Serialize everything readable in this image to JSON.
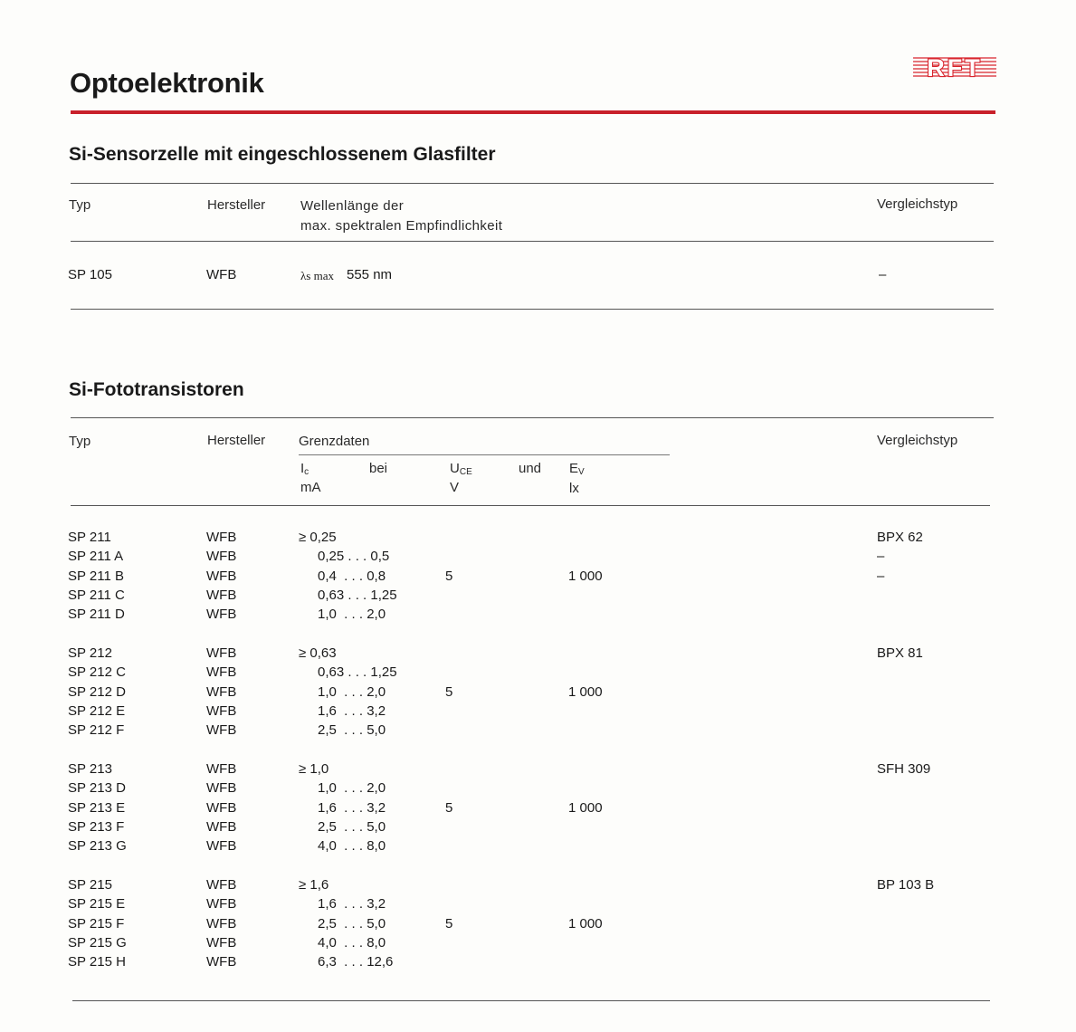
{
  "page_title": "Optoelektronik",
  "logo_text": "RFT",
  "colors": {
    "accent_red": "#c8202a"
  },
  "section1": {
    "title": "Si-Sensorzelle mit eingeschlossenem Glasfilter",
    "headers": {
      "typ": "Typ",
      "hersteller": "Hersteller",
      "wellen_1": "Wellenlänge der",
      "wellen_2": "max. spektralen Empfindlichkeit",
      "vergleich": "Vergleichstyp"
    },
    "row": {
      "typ": "SP 105",
      "hersteller": "WFB",
      "lambda_symbol": "λs max",
      "wellenlaenge": "555 nm",
      "vergleich": "–"
    }
  },
  "section2": {
    "title": "Si-Fototransistoren",
    "headers": {
      "typ": "Typ",
      "hersteller": "Hersteller",
      "grenzdaten": "Grenzdaten",
      "ic": "I",
      "ic_sub": "c",
      "ic_unit": "mA",
      "bei": "bei",
      "uce": "U",
      "uce_sub": "CE",
      "uce_unit": "V",
      "und": "und",
      "ev": "E",
      "ev_sub": "V",
      "ev_unit": "lx",
      "vergleich": "Vergleichstyp"
    },
    "groups": [
      {
        "uce": "5",
        "ev": "1 000",
        "rows": [
          {
            "typ": "SP 211",
            "hersteller": "WFB",
            "ic": "≥ 0,25",
            "vergleich": "BPX 62"
          },
          {
            "typ": "SP 211 A",
            "hersteller": "WFB",
            "ic": "0,25 . . . 0,5",
            "vergleich": "–"
          },
          {
            "typ": "SP 211 B",
            "hersteller": "WFB",
            "ic": "0,4  . . . 0,8",
            "vergleich": "–"
          },
          {
            "typ": "SP 211 C",
            "hersteller": "WFB",
            "ic": "0,63 . . . 1,25"
          },
          {
            "typ": "SP 211 D",
            "hersteller": "WFB",
            "ic": "1,0  . . . 2,0"
          }
        ]
      },
      {
        "uce": "5",
        "ev": "1 000",
        "rows": [
          {
            "typ": "SP 212",
            "hersteller": "WFB",
            "ic": "≥ 0,63",
            "vergleich": "BPX 81"
          },
          {
            "typ": "SP 212 C",
            "hersteller": "WFB",
            "ic": "0,63 . . . 1,25"
          },
          {
            "typ": "SP 212 D",
            "hersteller": "WFB",
            "ic": "1,0  . . . 2,0"
          },
          {
            "typ": "SP 212 E",
            "hersteller": "WFB",
            "ic": "1,6  . . . 3,2"
          },
          {
            "typ": "SP 212 F",
            "hersteller": "WFB",
            "ic": "2,5  . . . 5,0"
          }
        ]
      },
      {
        "uce": "5",
        "ev": "1 000",
        "rows": [
          {
            "typ": "SP 213",
            "hersteller": "WFB",
            "ic": "≥ 1,0",
            "vergleich": "SFH 309"
          },
          {
            "typ": "SP 213 D",
            "hersteller": "WFB",
            "ic": "1,0  . . . 2,0"
          },
          {
            "typ": "SP 213 E",
            "hersteller": "WFB",
            "ic": "1,6  . . . 3,2"
          },
          {
            "typ": "SP 213 F",
            "hersteller": "WFB",
            "ic": "2,5  . . . 5,0"
          },
          {
            "typ": "SP 213 G",
            "hersteller": "WFB",
            "ic": "4,0  . . . 8,0"
          }
        ]
      },
      {
        "uce": "5",
        "ev": "1 000",
        "rows": [
          {
            "typ": "SP 215",
            "hersteller": "WFB",
            "ic": "≥ 1,6",
            "vergleich": "BP 103 B"
          },
          {
            "typ": "SP 215 E",
            "hersteller": "WFB",
            "ic": "1,6  . . . 3,2"
          },
          {
            "typ": "SP 215 F",
            "hersteller": "WFB",
            "ic": "2,5  . . . 5,0"
          },
          {
            "typ": "SP 215 G",
            "hersteller": "WFB",
            "ic": "4,0  . . . 8,0"
          },
          {
            "typ": "SP 215 H",
            "hersteller": "WFB",
            "ic": "6,3  . . . 12,6"
          }
        ]
      }
    ]
  }
}
